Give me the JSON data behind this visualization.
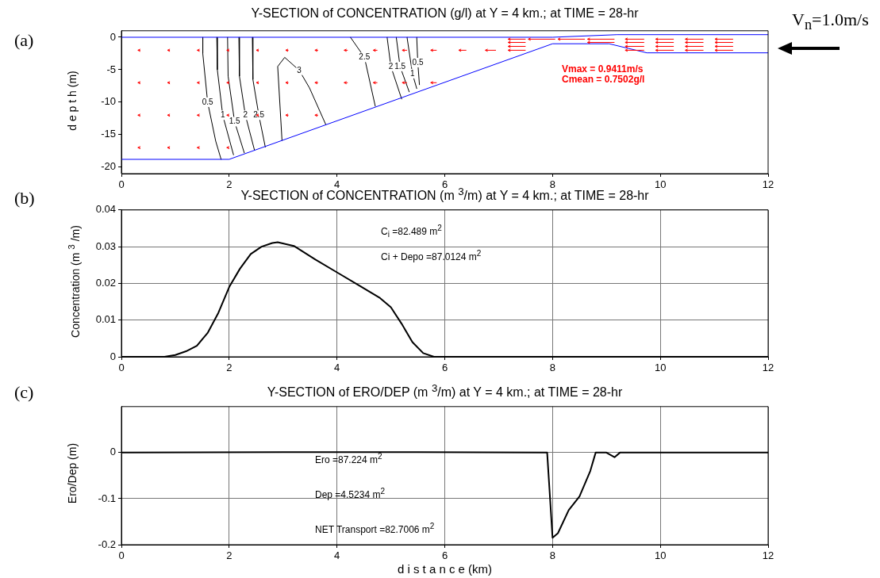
{
  "chart_data": [
    {
      "type": "line",
      "title": "Y-SECTION of CONCENTRATION (g/l) at Y = 4 km.; at TIME = 28-hr",
      "ylabel": "d e p t h (m)",
      "xlim": [
        0,
        12
      ],
      "xticks": [
        0,
        2,
        4,
        6,
        8,
        10,
        12
      ],
      "ylim": [
        -21,
        1
      ],
      "yticks": [
        -20,
        -15,
        -10,
        -5,
        0
      ],
      "grid": false,
      "legend": false,
      "marker": "none",
      "line_style": "solid",
      "annotations": [
        "(a)",
        "Vmax = 0.9411m/s",
        "Cmean = 0.7502g/l",
        "V$_{n}$=1.0m/s"
      ],
      "series": [
        {
          "color": "#0000ff",
          "x": [
            0,
            2,
            8,
            9.05,
            9.75,
            12
          ],
          "values": [
            -18.8,
            -18.8,
            -1,
            -1,
            -2.4,
            -2.4
          ]
        },
        {
          "color": "#0000ff",
          "x": [
            0,
            8,
            9.2,
            12
          ],
          "values": [
            0,
            0,
            0.4,
            0.4
          ]
        },
        {
          "name": "0.5",
          "color": "#000000",
          "x": [
            1.51,
            1.51,
            1.6,
            1.75,
            1.85
          ],
          "values": [
            0,
            -2.5,
            -10,
            -16,
            -18.8
          ]
        },
        {
          "name": "1",
          "color": "#000000",
          "x": [
            1.77,
            1.78,
            1.88,
            2.08
          ],
          "values": [
            0,
            -5,
            -12,
            -18.1
          ]
        },
        {
          "name": "1.5",
          "color": "#000000",
          "x": [
            1.97,
            1.98,
            2.1,
            2.28
          ],
          "values": [
            0,
            -6,
            -13,
            -17.8
          ]
        },
        {
          "name": "2",
          "color": "#000000",
          "x": [
            2.18,
            2.19,
            2.3,
            2.47
          ],
          "values": [
            0,
            -6,
            -12,
            -17.4
          ]
        },
        {
          "name": "2.5",
          "color": "#000000",
          "x": [
            2.43,
            2.44,
            2.55,
            2.67
          ],
          "values": [
            0,
            -6.5,
            -12,
            -16.9
          ]
        },
        {
          "name": "3",
          "color": "#000000",
          "x": [
            2.98,
            2.9,
            3.03,
            3.3,
            3.49,
            3.79
          ],
          "values": [
            -15.9,
            -4.5,
            -3.1,
            -5.1,
            -7.8,
            -13.4
          ]
        },
        {
          "name": "2.5",
          "color": "#000000",
          "x": [
            4.25,
            4.51,
            4.71
          ],
          "values": [
            0,
            -3.1,
            -10.6
          ]
        },
        {
          "name": "2",
          "color": "#000000",
          "x": [
            4.93,
            5.0,
            5.2
          ],
          "values": [
            0,
            -4.5,
            -9.5
          ]
        },
        {
          "name": "1.5",
          "color": "#000000",
          "x": [
            5.1,
            5.17,
            5.34
          ],
          "values": [
            0,
            -4.5,
            -8.4
          ]
        },
        {
          "name": "1",
          "color": "#000000",
          "x": [
            5.3,
            5.4,
            5.48
          ],
          "values": [
            0,
            -5.6,
            -7.9
          ]
        },
        {
          "name": "0.5",
          "color": "#000000",
          "x": [
            5.48,
            5.5,
            5.53
          ],
          "values": [
            0,
            -3.9,
            -7.3
          ]
        }
      ]
    },
    {
      "type": "line",
      "title": "Y-SECTION of CONCENTRATION (m $^{3}$/m) at Y = 4 km.; at TIME = 28-hr",
      "ylabel": "Concentration (m $^{3}$ /m)",
      "xlim": [
        0,
        12
      ],
      "xticks": [
        0,
        2,
        4,
        6,
        8,
        10,
        12
      ],
      "ylim": [
        0,
        0.04
      ],
      "yticks": [
        0,
        0.01,
        0.02,
        0.03,
        0.04
      ],
      "grid": true,
      "legend": false,
      "marker": "none",
      "line_style": "solid",
      "annotations": [
        "(b)",
        "C$_{i}$ =82.489 m$^{2}$",
        "Ci + Depo =87.0124 m$^{2}$"
      ],
      "series": [
        {
          "color": "#000000",
          "x": [
            0,
            0.8,
            1.0,
            1.2,
            1.4,
            1.6,
            1.8,
            2.0,
            2.2,
            2.4,
            2.6,
            2.8,
            2.9,
            3.2,
            3.6,
            4.0,
            4.4,
            4.8,
            5.0,
            5.2,
            5.4,
            5.6,
            5.8,
            12
          ],
          "values": [
            0,
            0,
            0.0005,
            0.0015,
            0.003,
            0.0065,
            0.012,
            0.019,
            0.024,
            0.028,
            0.03,
            0.031,
            0.0312,
            0.0302,
            0.0265,
            0.023,
            0.0195,
            0.016,
            0.0135,
            0.009,
            0.004,
            0.001,
            0,
            0
          ]
        }
      ]
    },
    {
      "type": "line",
      "title": "Y-SECTION of ERO/DEP (m $^{3}$/m) at Y = 4 km.; at TIME = 28-hr",
      "xlabel": "d i s t a n c e (km)",
      "ylabel": "Ero/Dep (m)",
      "xlim": [
        0,
        12
      ],
      "xticks": [
        0,
        2,
        4,
        6,
        8,
        10,
        12
      ],
      "ylim": [
        -0.2,
        0.1
      ],
      "yticks": [
        -0.2,
        -0.1,
        0
      ],
      "grid": true,
      "legend": false,
      "marker": "none",
      "line_style": "solid",
      "annotations": [
        "(c)",
        "Ero =87.224 m$^{2}$",
        "Dep =4.5234 m$^{2}$",
        "NET Transport =82.7006 m$^{2}$"
      ],
      "series": [
        {
          "color": "#000000",
          "x": [
            0,
            3,
            5.5,
            7.9,
            8.0,
            8.1,
            8.3,
            8.5,
            8.7,
            8.8,
            9.0,
            9.15,
            9.25,
            12
          ],
          "values": [
            0,
            0.001,
            0.001,
            0,
            -0.185,
            -0.175,
            -0.125,
            -0.095,
            -0.04,
            0,
            0,
            -0.01,
            0,
            0
          ]
        }
      ]
    }
  ]
}
